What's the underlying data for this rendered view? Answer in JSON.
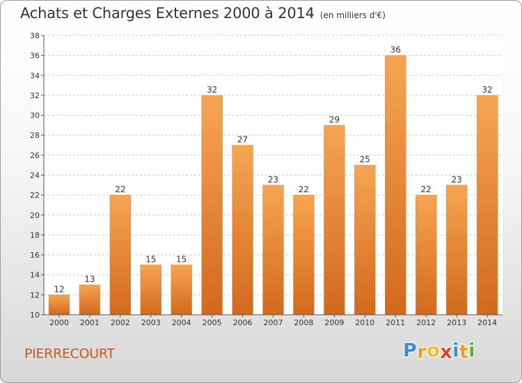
{
  "chart_data": {
    "type": "bar",
    "title": "Achats et Charges Externes 2000 à 2014",
    "subtitle": "(en milliers d'€)",
    "xlabel": "",
    "ylabel": "",
    "categories": [
      "2000",
      "2001",
      "2002",
      "2003",
      "2004",
      "2005",
      "2006",
      "2007",
      "2008",
      "2009",
      "2010",
      "2011",
      "2012",
      "2013",
      "2014"
    ],
    "values": [
      12,
      13,
      22,
      15,
      15,
      32,
      27,
      23,
      22,
      29,
      25,
      36,
      22,
      23,
      32
    ],
    "data_labels": [
      "12",
      "13",
      "22",
      "15",
      "15",
      "32",
      "27",
      "23",
      "22",
      "29",
      "25",
      "36",
      "22",
      "23",
      "32"
    ],
    "ylim": [
      10,
      38
    ],
    "yticks": [
      10,
      12,
      14,
      16,
      18,
      20,
      22,
      24,
      26,
      28,
      30,
      32,
      34,
      36,
      38
    ],
    "grid": true,
    "bar_color": "#f39c3c"
  },
  "footer": {
    "location": "PIERRECOURT",
    "brand_letters": [
      "P",
      "r",
      "o",
      "x",
      "i",
      "t",
      "i"
    ],
    "brand_colors": [
      "#3a8fd0",
      "#e8a020",
      "#f0c020",
      "#e04030",
      "#3a8fd0",
      "#e8a020",
      "#5ab030"
    ]
  }
}
